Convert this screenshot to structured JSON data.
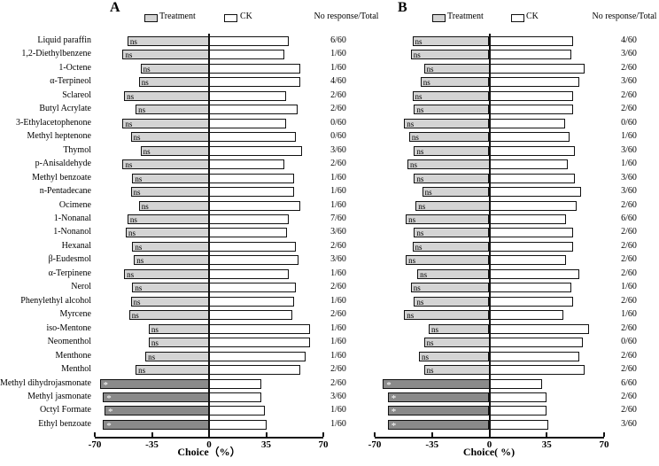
{
  "colors": {
    "treatment_ns": "#d4d4d4",
    "treatment_sig": "#8a8a8a",
    "ck": "#ffffff",
    "axis": "#111111",
    "star": "#ffffff"
  },
  "chart_data": [
    {
      "type": "bar",
      "orientation": "horizontal",
      "title": "A",
      "xlabel": "Choice（%）",
      "xlim": [
        -70,
        70
      ],
      "xticks": [
        -70,
        -35,
        0,
        35,
        70
      ],
      "legend": [
        "Treatment",
        "CK"
      ],
      "legend_position": "top",
      "right_column_header": "No response/Total",
      "show_category_labels": true,
      "grid": false,
      "categories": [
        "Liquid paraffin",
        "1,2-Diethylbenzene",
        "1-Octene",
        "α-Terpineol",
        "Sclareol",
        "Butyl Acrylate",
        "3-Ethylacetophenone",
        "Methyl heptenone",
        "Thymol",
        "p-Anisaldehyde",
        "Methyl benzoate",
        "n-Pentadecane",
        "Ocimene",
        "1-Nonanal",
        "1-Nonanol",
        "Hexanal",
        "β-Eudesmol",
        "α-Terpinene",
        "Nerol",
        "Phenylethyl alcohol",
        "Myrcene",
        "iso-Mentone",
        "Neomenthol",
        "Menthone",
        "Menthol",
        "Methyl dihydrojasmonate",
        "Methyl jasmonate",
        "Octyl Formate",
        "Ethyl benzoate"
      ],
      "series": [
        {
          "name": "Treatment",
          "side": "left",
          "values": [
            -50,
            -53,
            -42,
            -43,
            -52,
            -45,
            -53,
            -48,
            -42,
            -53,
            -47,
            -48,
            -43,
            -50,
            -51,
            -47,
            -46,
            -52,
            -47,
            -48,
            -49,
            -37,
            -37,
            -39,
            -45,
            -67,
            -65,
            -64,
            -65
          ]
        },
        {
          "name": "CK",
          "side": "right",
          "values": [
            49,
            46,
            56,
            56,
            47,
            54,
            47,
            53,
            57,
            46,
            52,
            52,
            56,
            49,
            48,
            53,
            55,
            49,
            53,
            52,
            51,
            62,
            62,
            59,
            56,
            32,
            32,
            34,
            35
          ]
        }
      ],
      "significance": [
        "ns",
        "ns",
        "ns",
        "ns",
        "ns",
        "ns",
        "ns",
        "ns",
        "ns",
        "ns",
        "ns",
        "ns",
        "ns",
        "ns",
        "ns",
        "ns",
        "ns",
        "ns",
        "ns",
        "ns",
        "ns",
        "ns",
        "ns",
        "ns",
        "ns",
        "*",
        "*",
        "*",
        "*"
      ],
      "no_response_total": [
        "6/60",
        "1/60",
        "1/60",
        "4/60",
        "2/60",
        "2/60",
        "0/60",
        "0/60",
        "3/60",
        "2/60",
        "1/60",
        "1/60",
        "1/60",
        "7/60",
        "3/60",
        "2/60",
        "3/60",
        "1/60",
        "2/60",
        "1/60",
        "2/60",
        "1/60",
        "1/60",
        "1/60",
        "2/60",
        "2/60",
        "3/60",
        "1/60",
        "1/60"
      ]
    },
    {
      "type": "bar",
      "orientation": "horizontal",
      "title": "B",
      "xlabel": "Choice( %)",
      "xlim": [
        -70,
        70
      ],
      "xticks": [
        -70,
        -35,
        0,
        35,
        70
      ],
      "legend": [
        "Treatment",
        "CK"
      ],
      "legend_position": "top",
      "right_column_header": "No response/Total",
      "show_category_labels": false,
      "grid": false,
      "categories": [
        "Liquid paraffin",
        "1,2-Diethylbenzene",
        "1-Octene",
        "α-Terpineol",
        "Sclareol",
        "Butyl Acrylate",
        "3-Ethylacetophenone",
        "Methyl heptenone",
        "Thymol",
        "p-Anisaldehyde",
        "Methyl benzoate",
        "n-Pentadecane",
        "Ocimene",
        "1-Nonanal",
        "1-Nonanol",
        "Hexanal",
        "β-Eudesmol",
        "α-Terpinene",
        "Nerol",
        "Phenylethyl alcohol",
        "Myrcene",
        "iso-Mentone",
        "Neomenthol",
        "Menthone",
        "Menthol",
        "Methyl dihydrojasmonate",
        "Methyl jasmonate",
        "Octyl Formate",
        "Ethyl benzoate"
      ],
      "series": [
        {
          "name": "Treatment",
          "side": "left",
          "values": [
            -47,
            -48,
            -40,
            -42,
            -47,
            -46,
            -52,
            -49,
            -46,
            -50,
            -46,
            -41,
            -45,
            -51,
            -46,
            -47,
            -51,
            -44,
            -48,
            -46,
            -52,
            -37,
            -40,
            -43,
            -40,
            -65,
            -62,
            -62,
            -62
          ]
        },
        {
          "name": "CK",
          "side": "right",
          "values": [
            51,
            50,
            58,
            55,
            51,
            51,
            46,
            49,
            52,
            48,
            52,
            56,
            53,
            47,
            51,
            51,
            47,
            55,
            50,
            51,
            45,
            61,
            57,
            55,
            58,
            32,
            35,
            35,
            36
          ]
        }
      ],
      "significance": [
        "ns",
        "ns",
        "ns",
        "ns",
        "ns",
        "ns",
        "ns",
        "ns",
        "ns",
        "ns",
        "ns",
        "ns",
        "ns",
        "ns",
        "ns",
        "ns",
        "ns",
        "ns",
        "ns",
        "ns",
        "ns",
        "ns",
        "ns",
        "ns",
        "ns",
        "*",
        "*",
        "*",
        "*"
      ],
      "no_response_total": [
        "4/60",
        "3/60",
        "2/60",
        "3/60",
        "2/60",
        "2/60",
        "0/60",
        "1/60",
        "3/60",
        "1/60",
        "3/60",
        "3/60",
        "2/60",
        "6/60",
        "2/60",
        "2/60",
        "2/60",
        "2/60",
        "1/60",
        "2/60",
        "1/60",
        "2/60",
        "0/60",
        "2/60",
        "2/60",
        "6/60",
        "2/60",
        "2/60",
        "3/60"
      ]
    }
  ]
}
